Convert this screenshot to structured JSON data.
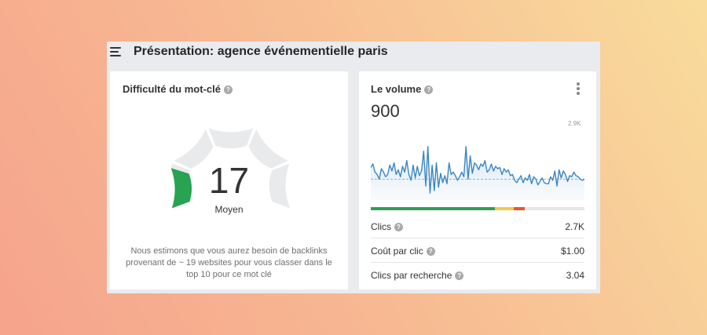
{
  "header": {
    "title": "Présentation: agence événementielle paris",
    "menu_icon": "hamburger-menu-icon"
  },
  "difficulty": {
    "title": "Difficulté du mot-clé",
    "help_icon": "question-icon",
    "value": "17",
    "level": "Moyen",
    "score_fraction": 0.17,
    "fill_color": "#27a352",
    "track_color": "#e9eaeb",
    "description": "Nous estimons que vous aurez besoin de backlinks provenant de ~ 19 websites pour vous classer dans le top 10 pour ce mot clé"
  },
  "volume": {
    "title": "Le volume",
    "help_icon": "question-icon",
    "menu_icon": "kebab-menu-icon",
    "value": "900",
    "chart_max_label": "2.9K",
    "line_color": "#3b86c4",
    "distribution": [
      {
        "share": 0.58,
        "color": "#2f9e58"
      },
      {
        "share": 0.09,
        "color": "#f2c94c"
      },
      {
        "share": 0.05,
        "color": "#e8562a"
      }
    ],
    "metrics": [
      {
        "label": "Clics",
        "value": "2.7K",
        "help": true
      },
      {
        "label": "Coût par clic",
        "value": "$1.00",
        "help": true
      },
      {
        "label": "Clics par recherche",
        "value": "3.04",
        "help": true
      }
    ]
  },
  "chart_data": {
    "type": "area",
    "ymax_label": "2.9K",
    "ylim": [
      0,
      2900
    ],
    "reference_line": 900,
    "values": [
      1400,
      1550,
      1200,
      1100,
      900,
      1350,
      1200,
      1000,
      1100,
      1500,
      1250,
      1600,
      1100,
      1300,
      1000,
      1450,
      1200,
      1700,
      1100,
      850,
      1500,
      950,
      1450,
      1050,
      1250,
      2100,
      600,
      2300,
      300,
      1500,
      400,
      1600,
      550,
      1150,
      750,
      1050,
      700,
      1600,
      1100,
      1200,
      1050,
      850,
      1000,
      1200,
      1000,
      2300,
      900,
      1900,
      1150,
      1600,
      1500,
      1300,
      1550,
      1450,
      1700,
      1200,
      1300,
      1550,
      1250,
      1450,
      1350,
      1400,
      1100,
      1350,
      1200,
      1300,
      1050,
      1100,
      850,
      750,
      900,
      1050,
      750,
      950,
      850,
      1100,
      700,
      1000,
      900,
      650,
      800,
      950,
      750,
      700,
      700,
      1000,
      850,
      1250,
      600,
      1300,
      950,
      1250,
      1100,
      800,
      1050,
      1000,
      1200,
      1050,
      1000,
      900,
      850,
      900
    ]
  }
}
